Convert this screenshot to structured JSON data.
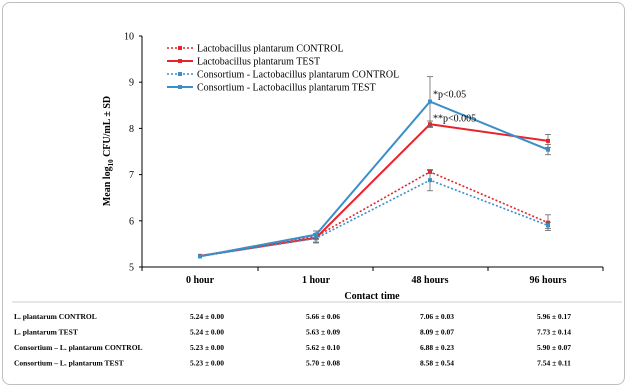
{
  "chart_data": {
    "type": "line",
    "ylabel": "Mean log10 CFU/mL ± SD",
    "xlabel": "Contact time",
    "ylim": [
      5,
      10
    ],
    "yticks": [
      5,
      6,
      7,
      8,
      9,
      10
    ],
    "categories": [
      "0 hour",
      "1 hour",
      "48 hours",
      "96 hours"
    ],
    "legend_position": "top-left",
    "series": [
      {
        "name": "Lactobacillus plantarum CONTROL",
        "color": "#e8242b",
        "dash": true,
        "values": [
          5.24,
          5.66,
          7.06,
          5.96
        ],
        "sd": [
          0.0,
          0.06,
          0.03,
          0.17
        ]
      },
      {
        "name": "Lactobacillus plantarum TEST",
        "color": "#e8242b",
        "dash": false,
        "values": [
          5.24,
          5.63,
          8.09,
          7.73
        ],
        "sd": [
          0.0,
          0.09,
          0.07,
          0.14
        ]
      },
      {
        "name": "Consortium - Lactobacillus plantarum CONTROL",
        "color": "#3a8fc8",
        "dash": true,
        "values": [
          5.23,
          5.62,
          6.88,
          5.9
        ],
        "sd": [
          0.0,
          0.1,
          0.23,
          0.07
        ]
      },
      {
        "name": "Consortium - Lactobacillus plantarum TEST",
        "color": "#3a8fc8",
        "dash": false,
        "values": [
          5.23,
          5.7,
          8.58,
          7.54
        ],
        "sd": [
          0.0,
          0.08,
          0.54,
          0.11
        ]
      }
    ],
    "annotations": [
      {
        "text": "*p<0.05",
        "category": "48 hours",
        "y": 8.6
      },
      {
        "text": "**p<0.005",
        "category": "48 hours",
        "y": 8.08
      }
    ]
  },
  "table": {
    "rows": [
      {
        "label": "L. plantarum  CONTROL",
        "cells": [
          "5.24 ± 0.00",
          "5.66 ± 0.06",
          "7.06 ± 0.03",
          "5.96 ± 0.17"
        ]
      },
      {
        "label": "L. plantarum  TEST",
        "cells": [
          "5.24 ± 0.00",
          "5.63 ± 0.09",
          "8.09 ± 0.07",
          "7.73 ± 0.14"
        ]
      },
      {
        "label": "Consortium  – L. plantarum  CONTROL",
        "cells": [
          "5.23 ± 0.00",
          "5.62 ± 0.10",
          "6.88 ± 0.23",
          "5.90 ± 0.07"
        ]
      },
      {
        "label": "Consortium  – L. plantarum  TEST",
        "cells": [
          "5.23 ± 0.00",
          "5.70 ± 0.08",
          "8.58 ± 0.54",
          "7.54 ± 0.11"
        ]
      }
    ]
  }
}
